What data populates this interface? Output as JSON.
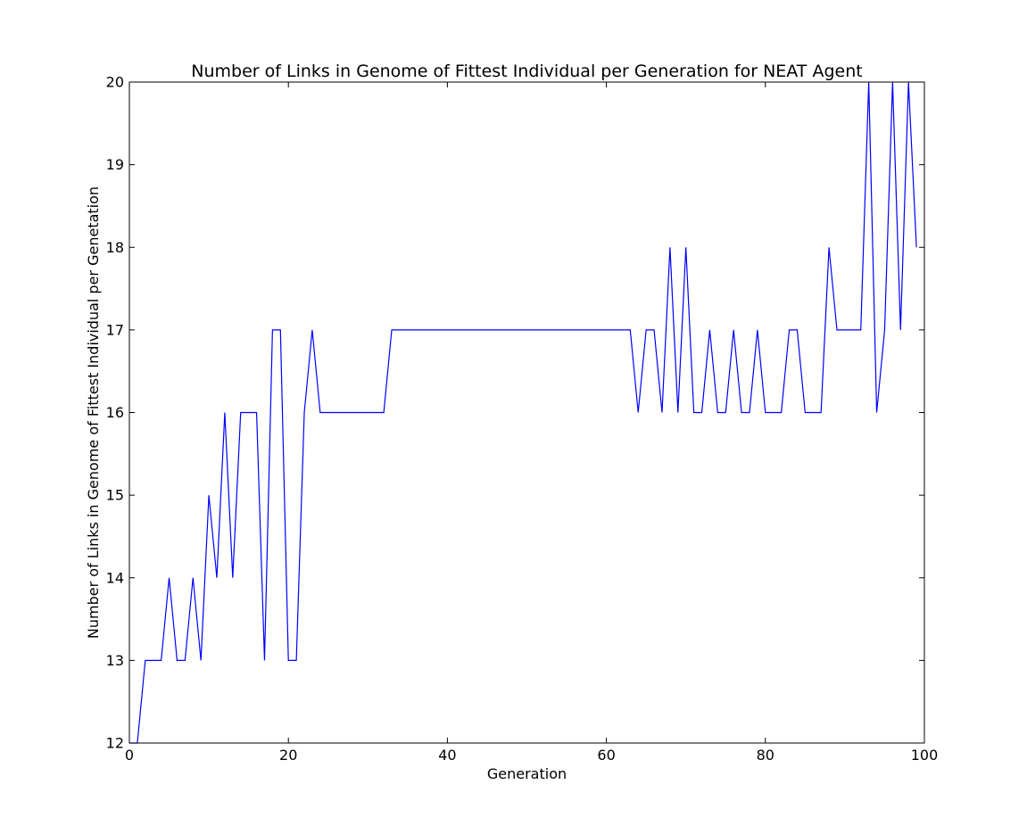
{
  "chart_data": {
    "type": "line",
    "title": "Number of Links in Genome of Fittest Individual per Generation for NEAT Agent",
    "xlabel": "Generation",
    "ylabel": "Number of Links in Genome of Fittest Individual per Genetation",
    "xlim": [
      0,
      100
    ],
    "ylim": [
      12,
      20
    ],
    "xticks": [
      0,
      20,
      40,
      60,
      80,
      100
    ],
    "yticks": [
      12,
      13,
      14,
      15,
      16,
      17,
      18,
      19,
      20
    ],
    "grid": false,
    "line_color": "#0000ff",
    "series": [
      {
        "x": [
          0,
          1,
          2,
          3,
          4,
          5,
          6,
          7,
          8,
          9,
          10,
          11,
          12,
          13,
          14,
          15,
          16,
          17,
          18,
          19,
          20,
          21,
          22,
          23,
          24,
          25,
          26,
          27,
          28,
          29,
          30,
          31,
          32,
          33,
          34,
          35,
          36,
          37,
          38,
          39,
          40,
          41,
          42,
          43,
          44,
          45,
          46,
          47,
          48,
          49,
          50,
          51,
          52,
          53,
          54,
          55,
          56,
          57,
          58,
          59,
          60,
          61,
          62,
          63,
          64,
          65,
          66,
          67,
          68,
          69,
          70,
          71,
          72,
          73,
          74,
          75,
          76,
          77,
          78,
          79,
          80,
          81,
          82,
          83,
          84,
          85,
          86,
          87,
          88,
          89,
          90,
          91,
          92,
          93,
          94,
          95,
          96,
          97,
          98,
          99
        ],
        "values": [
          12,
          12,
          13,
          13,
          13,
          14,
          13,
          13,
          14,
          13,
          15,
          14,
          16,
          14,
          16,
          16,
          16,
          13,
          17,
          17,
          13,
          13,
          16,
          17,
          16,
          16,
          16,
          16,
          16,
          16,
          16,
          16,
          16,
          17,
          17,
          17,
          17,
          17,
          17,
          17,
          17,
          17,
          17,
          17,
          17,
          17,
          17,
          17,
          17,
          17,
          17,
          17,
          17,
          17,
          17,
          17,
          17,
          17,
          17,
          17,
          17,
          17,
          17,
          17,
          16,
          17,
          17,
          16,
          18,
          16,
          18,
          16,
          16,
          17,
          16,
          16,
          17,
          16,
          16,
          17,
          16,
          16,
          16,
          17,
          17,
          16,
          16,
          16,
          18,
          17,
          17,
          17,
          17,
          20,
          16,
          17,
          20,
          17,
          20,
          18
        ]
      }
    ]
  }
}
